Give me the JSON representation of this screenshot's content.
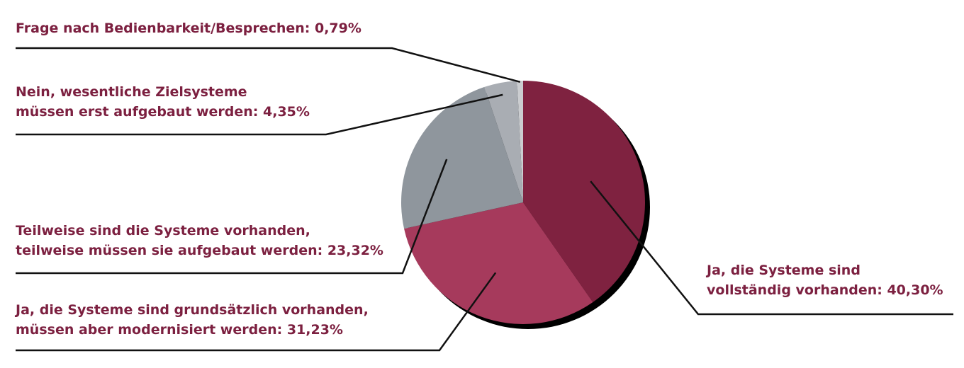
{
  "chart_data": {
    "type": "pie",
    "title": "",
    "slices": [
      {
        "label_lines": [
          "Ja, die Systeme sind",
          "vollständig vorhanden: 40,30%"
        ],
        "value": 40.3,
        "color": "#7f2240"
      },
      {
        "label_lines": [
          "Ja, die Systeme sind grundsätzlich vorhanden,",
          "müssen aber modernisiert werden: 31,23%"
        ],
        "value": 31.23,
        "color": "#a63a5c"
      },
      {
        "label_lines": [
          "Teilweise sind die Systeme vorhanden,",
          "teilweise müssen sie aufgebaut werden: 23,32%"
        ],
        "value": 23.32,
        "color": "#8f969d"
      },
      {
        "label_lines": [
          "Nein, wesentliche Zielsysteme",
          "müssen erst aufgebaut werden: 4,35%"
        ],
        "value": 4.35,
        "color": "#a9adb3"
      },
      {
        "label_lines": [
          "Frage nach Bedienbarkeit/Besprechen: 0,79%"
        ],
        "value": 0.79,
        "color": "#cbcdd0"
      }
    ],
    "shadow_color": "#000000",
    "leader_color": "#111111",
    "label_color": "#7c2040"
  }
}
